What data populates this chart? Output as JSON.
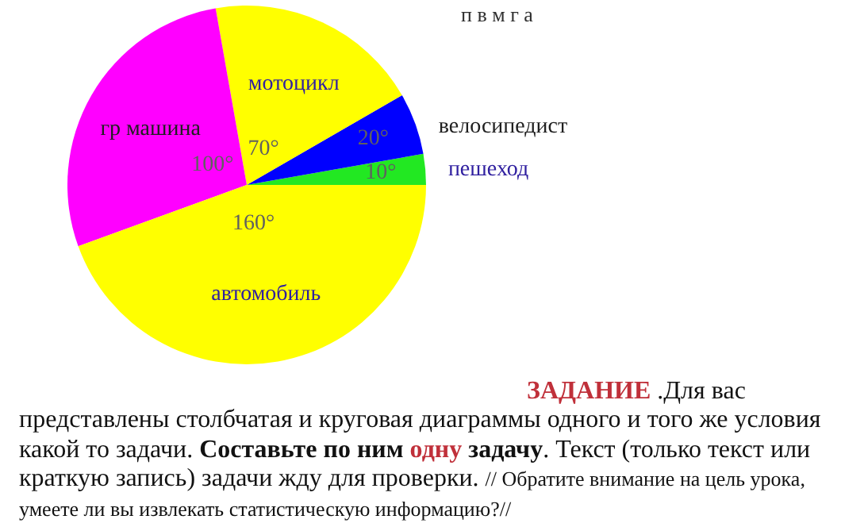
{
  "chart_data": {
    "type": "pie",
    "categories": [
      "пешеход",
      "велосипедист",
      "мотоцикл",
      "гр машина",
      "автомобиль"
    ],
    "values": [
      10,
      20,
      70,
      100,
      160
    ],
    "value_labels": [
      "10°",
      "20°",
      "70°",
      "100°",
      "160°"
    ],
    "colors": [
      "#22e822",
      "#0000ff",
      "#ffff00",
      "#ff00ff",
      "#ffff00"
    ],
    "annotations": [
      "п    в    м    г    а",
      "ЗАДАНИЕ",
      " .Для вас представлены столбчатая и круговая диаграммы одного и того же условия какой то задачи. ",
      "Составьте по ним ",
      "одну",
      " задачу",
      ".  Текст (только текст или краткую запись) задачи жду для проверки. ",
      "// Обратите внимание на цель урока, умеете ли вы извлекать статистическую информацию?//"
    ]
  }
}
